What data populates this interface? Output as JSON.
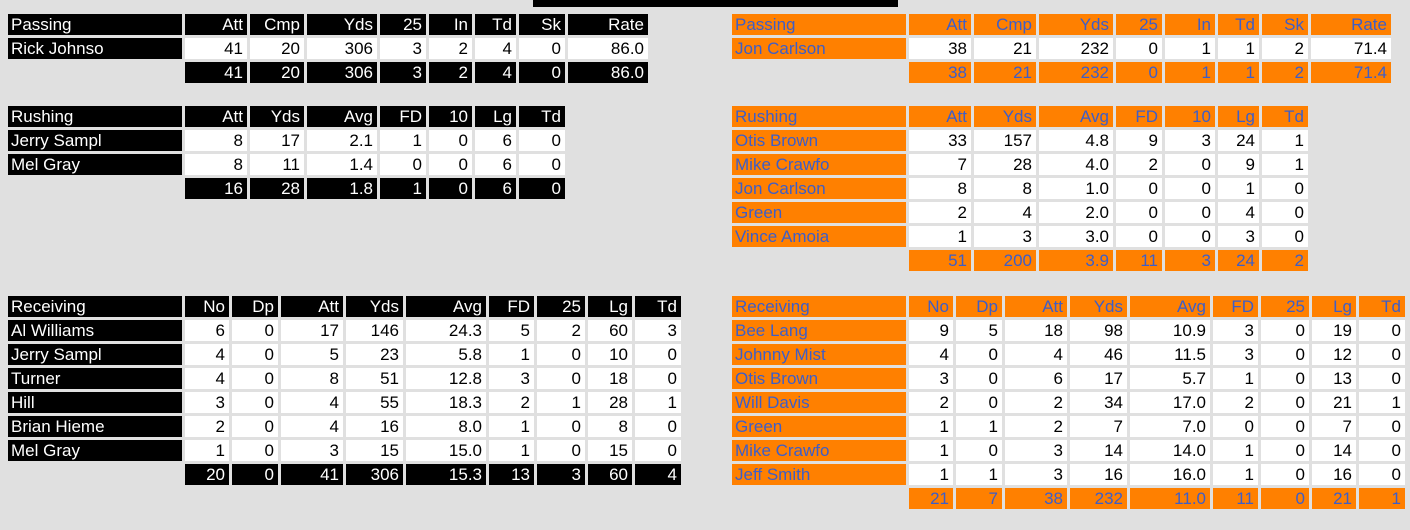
{
  "colors": {
    "home": "#000000",
    "away": "#ff8000",
    "away_text": "#3d5ec8",
    "background": "#e0e0e0"
  },
  "home": {
    "passing": {
      "label": "Passing",
      "headers": [
        "Att",
        "Cmp",
        "Yds",
        "25",
        "In",
        "Td",
        "Sk",
        "Rate"
      ],
      "rows": [
        {
          "name": "Rick Johnso",
          "values": [
            "41",
            "20",
            "306",
            "3",
            "2",
            "4",
            "0",
            "86.0"
          ]
        }
      ],
      "totals": [
        "41",
        "20",
        "306",
        "3",
        "2",
        "4",
        "0",
        "86.0"
      ]
    },
    "rushing": {
      "label": "Rushing",
      "headers": [
        "Att",
        "Yds",
        "Avg",
        "FD",
        "10",
        "Lg",
        "Td"
      ],
      "rows": [
        {
          "name": "Jerry Sampl",
          "values": [
            "8",
            "17",
            "2.1",
            "1",
            "0",
            "6",
            "0"
          ]
        },
        {
          "name": "Mel Gray",
          "values": [
            "8",
            "11",
            "1.4",
            "0",
            "0",
            "6",
            "0"
          ]
        }
      ],
      "totals": [
        "16",
        "28",
        "1.8",
        "1",
        "0",
        "6",
        "0"
      ]
    },
    "receiving": {
      "label": "Receiving",
      "headers": [
        "No",
        "Dp",
        "Att",
        "Yds",
        "Avg",
        "FD",
        "25",
        "Lg",
        "Td"
      ],
      "rows": [
        {
          "name": "Al Williams",
          "values": [
            "6",
            "0",
            "17",
            "146",
            "24.3",
            "5",
            "2",
            "60",
            "3"
          ]
        },
        {
          "name": "Jerry Sampl",
          "values": [
            "4",
            "0",
            "5",
            "23",
            "5.8",
            "1",
            "0",
            "10",
            "0"
          ]
        },
        {
          "name": "Turner",
          "values": [
            "4",
            "0",
            "8",
            "51",
            "12.8",
            "3",
            "0",
            "18",
            "0"
          ]
        },
        {
          "name": "Hill",
          "values": [
            "3",
            "0",
            "4",
            "55",
            "18.3",
            "2",
            "1",
            "28",
            "1"
          ]
        },
        {
          "name": "Brian Hieme",
          "values": [
            "2",
            "0",
            "4",
            "16",
            "8.0",
            "1",
            "0",
            "8",
            "0"
          ]
        },
        {
          "name": "Mel Gray",
          "values": [
            "1",
            "0",
            "3",
            "15",
            "15.0",
            "1",
            "0",
            "15",
            "0"
          ]
        }
      ],
      "totals": [
        "20",
        "0",
        "41",
        "306",
        "15.3",
        "13",
        "3",
        "60",
        "4"
      ]
    }
  },
  "away": {
    "passing": {
      "label": "Passing",
      "headers": [
        "Att",
        "Cmp",
        "Yds",
        "25",
        "In",
        "Td",
        "Sk",
        "Rate"
      ],
      "rows": [
        {
          "name": "Jon Carlson",
          "values": [
            "38",
            "21",
            "232",
            "0",
            "1",
            "1",
            "2",
            "71.4"
          ]
        }
      ],
      "totals": [
        "38",
        "21",
        "232",
        "0",
        "1",
        "1",
        "2",
        "71.4"
      ]
    },
    "rushing": {
      "label": "Rushing",
      "headers": [
        "Att",
        "Yds",
        "Avg",
        "FD",
        "10",
        "Lg",
        "Td"
      ],
      "rows": [
        {
          "name": "Otis Brown",
          "values": [
            "33",
            "157",
            "4.8",
            "9",
            "3",
            "24",
            "1"
          ]
        },
        {
          "name": "Mike Crawfo",
          "values": [
            "7",
            "28",
            "4.0",
            "2",
            "0",
            "9",
            "1"
          ]
        },
        {
          "name": "Jon Carlson",
          "values": [
            "8",
            "8",
            "1.0",
            "0",
            "0",
            "1",
            "0"
          ]
        },
        {
          "name": "Green",
          "values": [
            "2",
            "4",
            "2.0",
            "0",
            "0",
            "4",
            "0"
          ]
        },
        {
          "name": "Vince Amoia",
          "values": [
            "1",
            "3",
            "3.0",
            "0",
            "0",
            "3",
            "0"
          ]
        }
      ],
      "totals": [
        "51",
        "200",
        "3.9",
        "11",
        "3",
        "24",
        "2"
      ]
    },
    "receiving": {
      "label": "Receiving",
      "headers": [
        "No",
        "Dp",
        "Att",
        "Yds",
        "Avg",
        "FD",
        "25",
        "Lg",
        "Td"
      ],
      "rows": [
        {
          "name": "Bee Lang",
          "values": [
            "9",
            "5",
            "18",
            "98",
            "10.9",
            "3",
            "0",
            "19",
            "0"
          ]
        },
        {
          "name": "Johnny Mist",
          "values": [
            "4",
            "0",
            "4",
            "46",
            "11.5",
            "3",
            "0",
            "12",
            "0"
          ]
        },
        {
          "name": "Otis Brown",
          "values": [
            "3",
            "0",
            "6",
            "17",
            "5.7",
            "1",
            "0",
            "13",
            "0"
          ]
        },
        {
          "name": "Will Davis",
          "values": [
            "2",
            "0",
            "2",
            "34",
            "17.0",
            "2",
            "0",
            "21",
            "1"
          ]
        },
        {
          "name": "Green",
          "values": [
            "1",
            "1",
            "2",
            "7",
            "7.0",
            "0",
            "0",
            "7",
            "0"
          ]
        },
        {
          "name": "Mike Crawfo",
          "values": [
            "1",
            "0",
            "3",
            "14",
            "14.0",
            "1",
            "0",
            "14",
            "0"
          ]
        },
        {
          "name": "Jeff Smith",
          "values": [
            "1",
            "1",
            "3",
            "16",
            "16.0",
            "1",
            "0",
            "16",
            "0"
          ]
        }
      ],
      "totals": [
        "21",
        "7",
        "38",
        "232",
        "11.0",
        "11",
        "0",
        "21",
        "1"
      ]
    }
  }
}
